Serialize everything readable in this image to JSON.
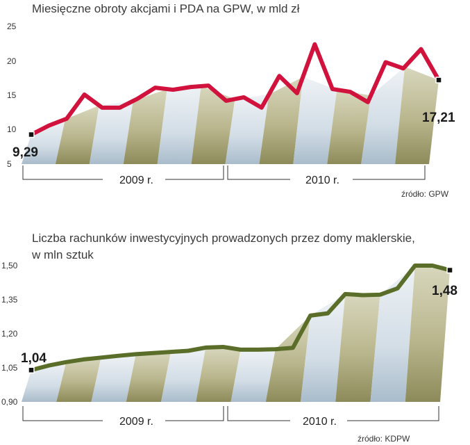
{
  "charts": [
    {
      "title_lines": [
        "Miesięczne obroty akcjami i PDA na GPW, w mld zł"
      ],
      "years": [
        "2009 r.",
        "2010 r."
      ],
      "source": "źródło: GPW",
      "first_label": "9,29",
      "last_label": "17,21",
      "colors": {
        "line": "#d0123c"
      }
    },
    {
      "title_lines": [
        "Liczba rachunków inwestycyjnych prowadzonych przez domy maklerskie,",
        "w mln sztuk"
      ],
      "years": [
        "2009 r.",
        "2010 r."
      ],
      "source": "źródło:  KDPW",
      "first_label": "1,04",
      "last_label": "1,48",
      "colors": {
        "line": "#5a6e2a"
      }
    }
  ],
  "chart_data": [
    {
      "type": "line",
      "title": "Miesięczne obroty akcjami i PDA na GPW, w mld zł",
      "xlabel": "",
      "ylabel": "",
      "y_ticks": [
        "25",
        "20",
        "15",
        "10",
        "5"
      ],
      "ylim": [
        5,
        25
      ],
      "grid": false,
      "series": [
        {
          "values": [
            9.29,
            10.6,
            11.6,
            15.1,
            13.2,
            13.2,
            14.5,
            16.1,
            15.8,
            16.2,
            16.4,
            14.2,
            14.7,
            13.2,
            17.8,
            15.3,
            22.4,
            15.9,
            15.5,
            14.0,
            19.8,
            18.9,
            21.7,
            17.21
          ]
        }
      ]
    },
    {
      "type": "line",
      "title": "Liczba rachunków inwestycyjnych prowadzonych przez domy maklerskie, w mln sztuk",
      "xlabel": "",
      "ylabel": "",
      "y_ticks": [
        "1,50",
        "1,35",
        "1,20",
        "1,05",
        "0,90"
      ],
      "ylim": [
        0.9,
        1.5
      ],
      "grid": false,
      "series": [
        {
          "values": [
            1.04,
            1.06,
            1.075,
            1.087,
            1.095,
            1.103,
            1.11,
            1.115,
            1.12,
            1.125,
            1.139,
            1.142,
            1.13,
            1.13,
            1.132,
            1.138,
            1.28,
            1.29,
            1.375,
            1.37,
            1.372,
            1.4,
            1.5,
            1.5,
            1.48
          ]
        }
      ]
    }
  ]
}
